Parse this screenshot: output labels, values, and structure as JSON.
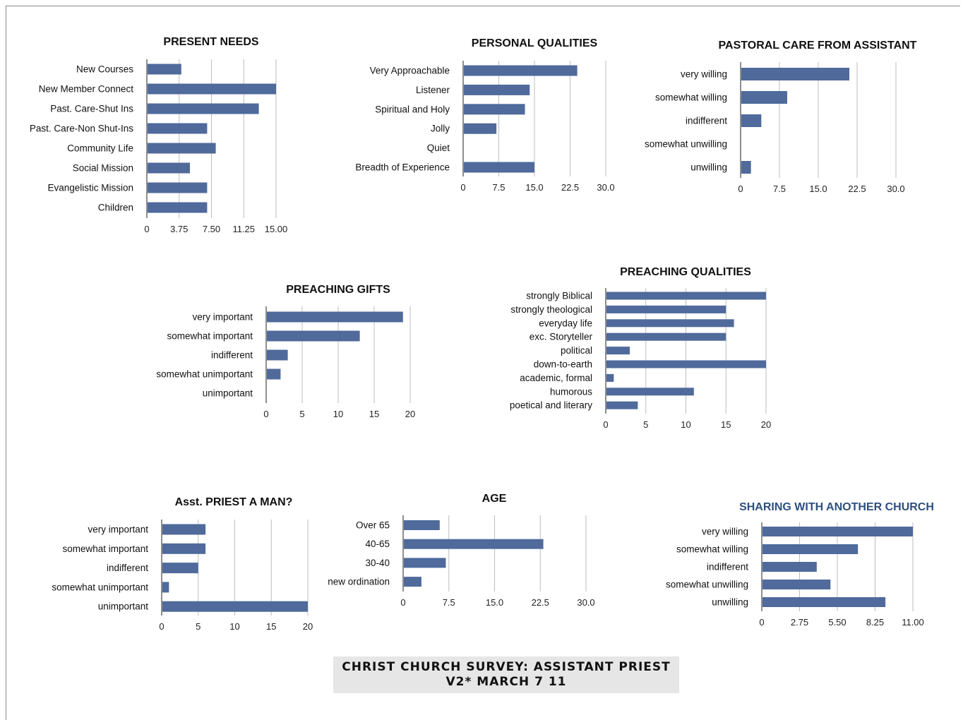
{
  "footer": {
    "line1": "CHRIST CHURCH SURVEY: ASSISTANT PRIEST",
    "line2": "V2* MARCH 7 11"
  },
  "colors": {
    "bar": "#4f6a9b",
    "title_accent": "#2d4f80",
    "grid": "#bdbdbd"
  },
  "chart_data": [
    {
      "type": "bar",
      "orientation": "horizontal",
      "title": "PRESENT NEEDS",
      "categories": [
        "New Courses",
        "New Member Connect",
        "Past. Care-Shut Ins",
        "Past. Care-Non Shut-Ins",
        "Community Life",
        "Social Mission",
        "Evangelistic Mission",
        "Children"
      ],
      "values": [
        4,
        15,
        13,
        7,
        8,
        5,
        7,
        7
      ],
      "xlim": [
        0,
        15
      ],
      "ticks": [
        "0",
        "3.75",
        "7.50",
        "11.25",
        "15.00"
      ],
      "grid": true
    },
    {
      "type": "bar",
      "orientation": "horizontal",
      "title": "PERSONAL QUALITIES",
      "categories": [
        "Very Approachable",
        "Listener",
        "Spiritual and Holy",
        "Jolly",
        "Quiet",
        "Breadth of Experience"
      ],
      "values": [
        24,
        14,
        13,
        7,
        0,
        15
      ],
      "xlim": [
        0,
        30
      ],
      "ticks": [
        "0",
        "7.5",
        "15.0",
        "22.5",
        "30.0"
      ],
      "grid": true
    },
    {
      "type": "bar",
      "orientation": "horizontal",
      "title": "PASTORAL CARE FROM ASSISTANT",
      "categories": [
        "very willing",
        "somewhat willing",
        "indifferent",
        "somewhat unwilling",
        "unwilling"
      ],
      "values": [
        21,
        9,
        4,
        0,
        2
      ],
      "xlim": [
        0,
        30
      ],
      "ticks": [
        "0",
        "7.5",
        "15.0",
        "22.5",
        "30.0"
      ],
      "grid": true
    },
    {
      "type": "bar",
      "orientation": "horizontal",
      "title": "PREACHING GIFTS",
      "categories": [
        "very important",
        "somewhat important",
        "indifferent",
        "somewhat unimportant",
        "unimportant"
      ],
      "values": [
        19,
        13,
        3,
        2,
        0
      ],
      "xlim": [
        0,
        20
      ],
      "ticks": [
        "0",
        "5",
        "10",
        "15",
        "20"
      ],
      "grid": true
    },
    {
      "type": "bar",
      "orientation": "horizontal",
      "title": "PREACHING QUALITIES",
      "categories": [
        "strongly Biblical",
        "strongly theological",
        "everyday life",
        "exc. Storyteller",
        "political",
        "down-to-earth",
        "academic, formal",
        "humorous",
        "poetical and literary"
      ],
      "values": [
        20,
        15,
        16,
        15,
        3,
        20,
        1,
        11,
        4
      ],
      "xlim": [
        0,
        20
      ],
      "ticks": [
        "0",
        "5",
        "10",
        "15",
        "20"
      ],
      "grid": true
    },
    {
      "type": "bar",
      "orientation": "horizontal",
      "title": "Asst. PRIEST A MAN?",
      "categories": [
        "very important",
        "somewhat important",
        "indifferent",
        "somewhat unimportant",
        "unimportant"
      ],
      "values": [
        6,
        6,
        5,
        1,
        20
      ],
      "xlim": [
        0,
        20
      ],
      "ticks": [
        "0",
        "5",
        "10",
        "15",
        "20"
      ],
      "grid": true
    },
    {
      "type": "bar",
      "orientation": "horizontal",
      "title": "AGE",
      "categories": [
        "Over 65",
        "40-65",
        "30-40",
        "new ordination"
      ],
      "values": [
        6,
        23,
        7,
        3
      ],
      "xlim": [
        0,
        30
      ],
      "ticks": [
        "0",
        "7.5",
        "15.0",
        "22.5",
        "30.0"
      ],
      "grid": true
    },
    {
      "type": "bar",
      "orientation": "horizontal",
      "title": "SHARING WITH ANOTHER CHURCH",
      "categories": [
        "very willing",
        "somewhat willing",
        "indifferent",
        "somewhat unwilling",
        "unwilling"
      ],
      "values": [
        11,
        7,
        4,
        5,
        9
      ],
      "xlim": [
        0,
        11
      ],
      "ticks": [
        "0",
        "2.75",
        "5.50",
        "8.25",
        "11.00"
      ],
      "grid": true
    }
  ]
}
